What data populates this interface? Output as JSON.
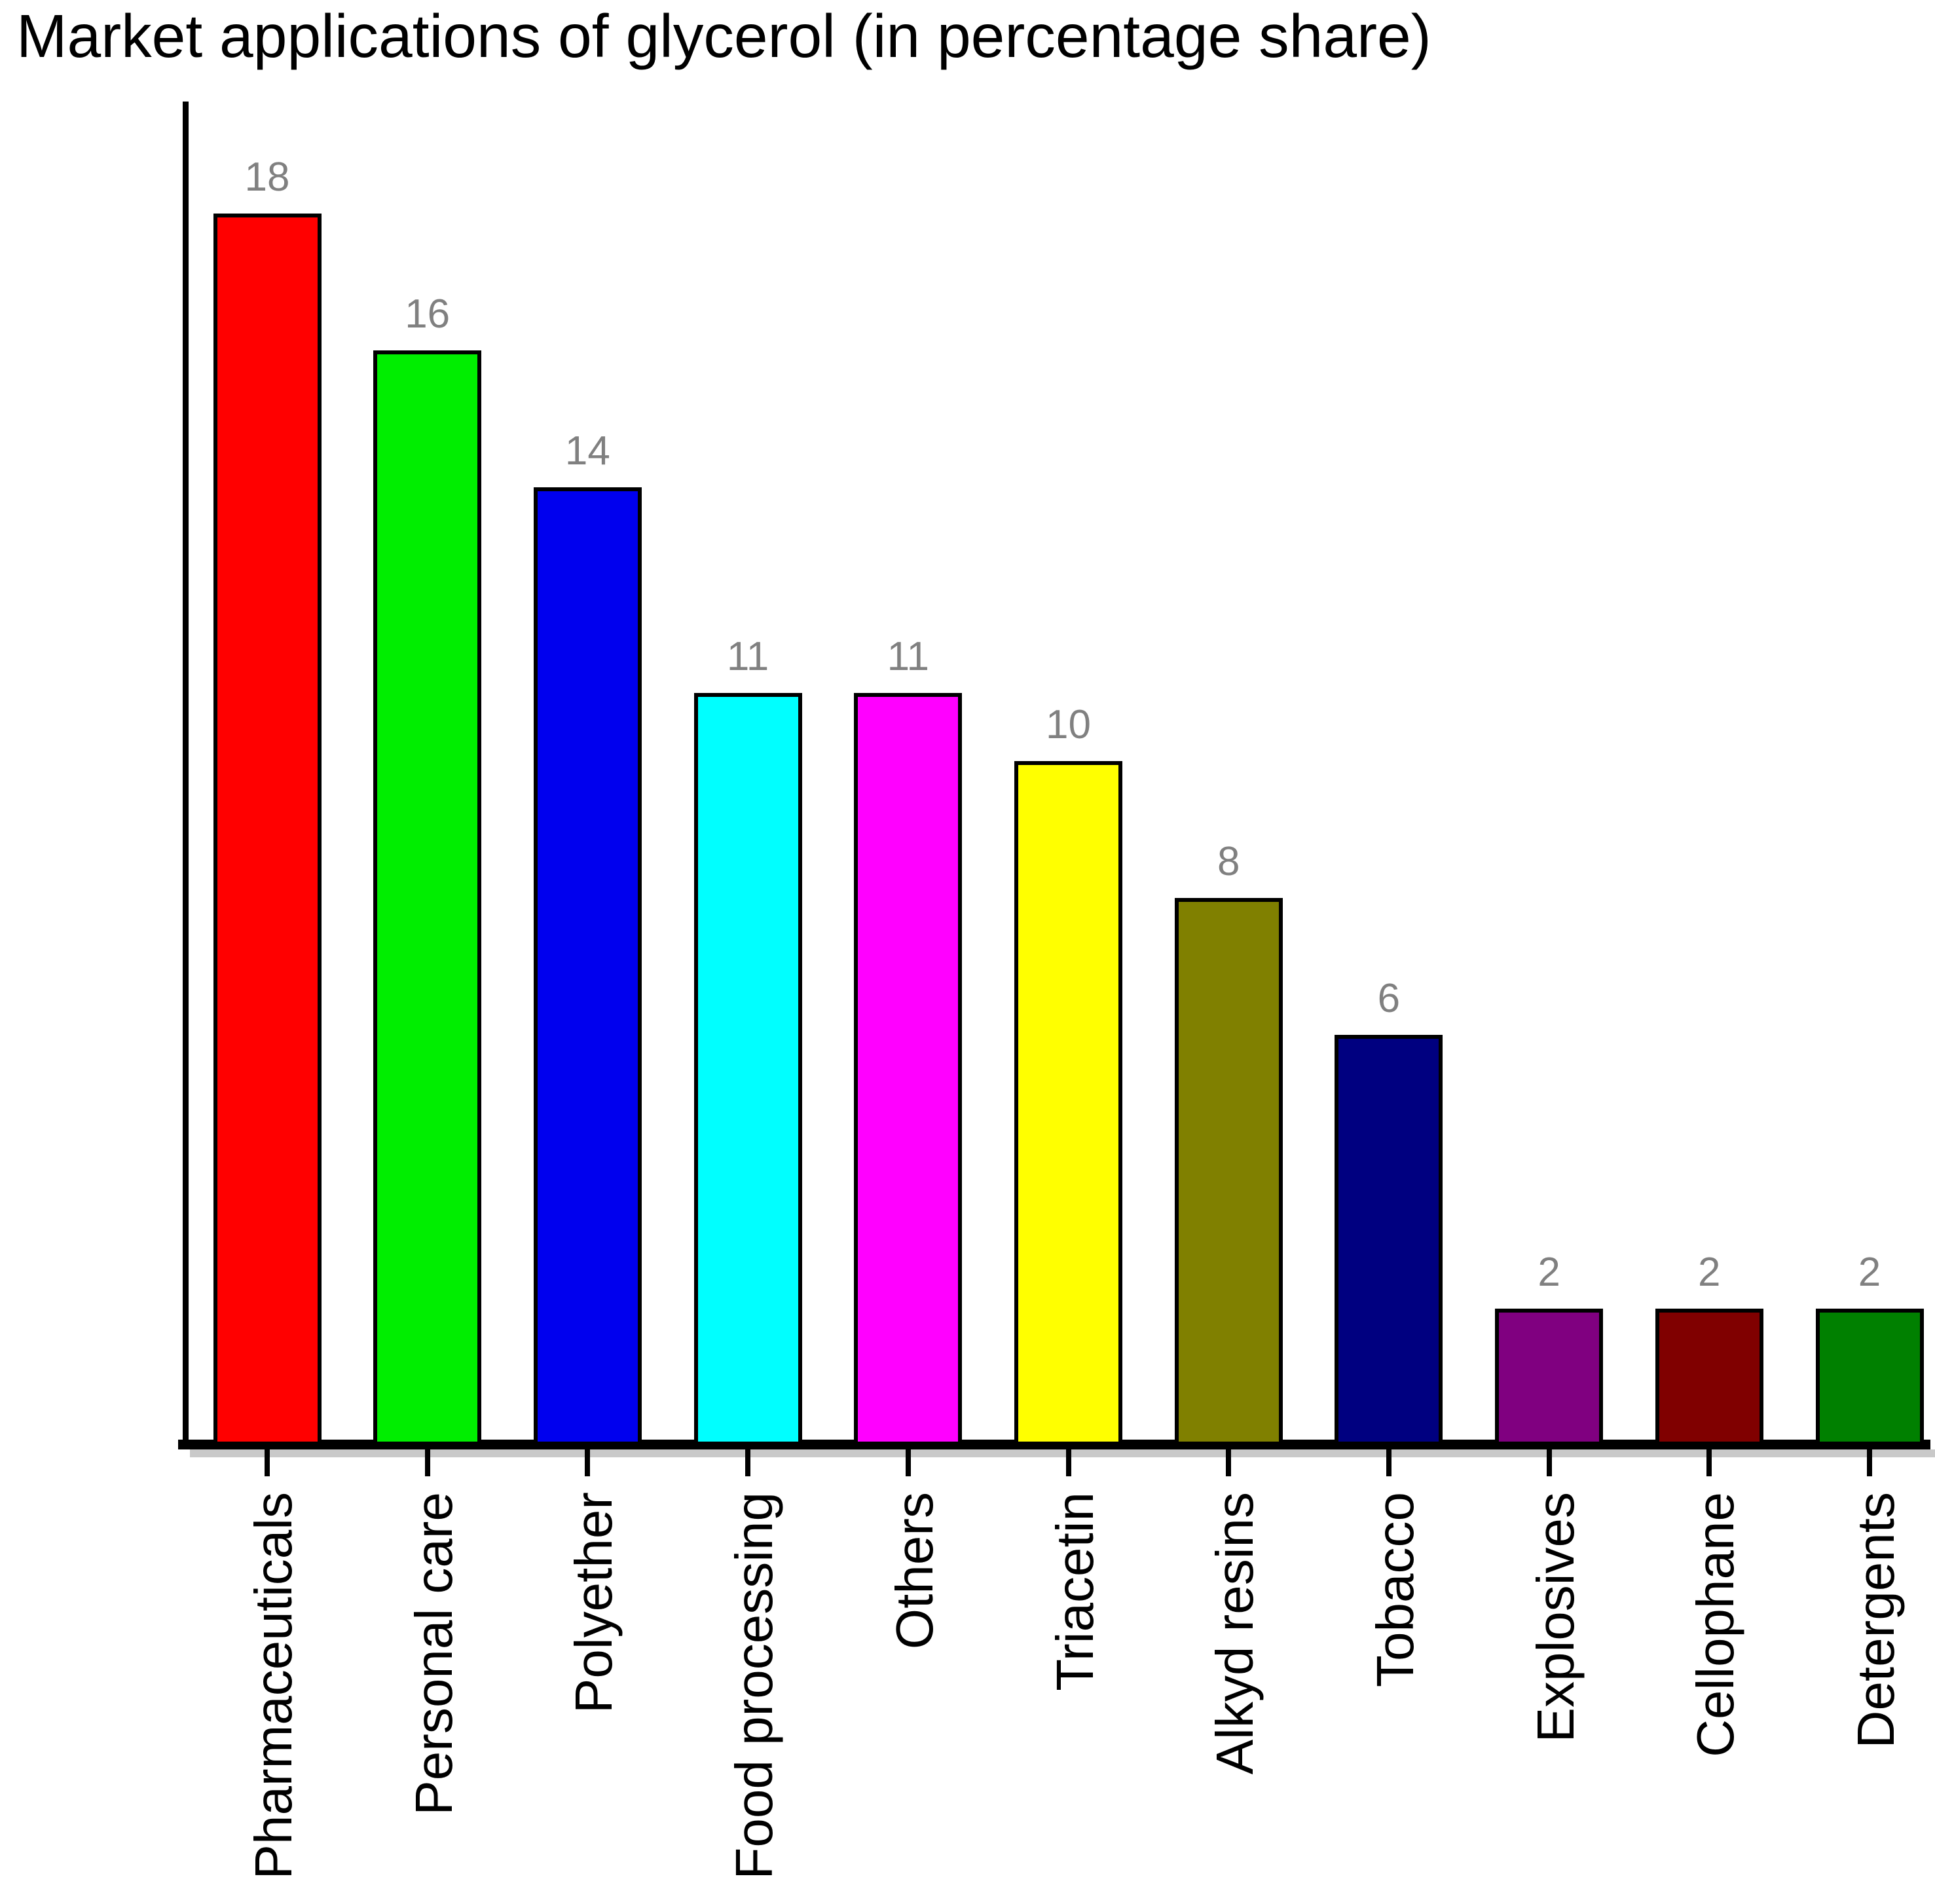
{
  "chart_data": {
    "type": "bar",
    "title": "Market applications of glycerol (in percentage share)",
    "categories": [
      "Pharmaceuticals",
      "Personal care",
      "Polyether",
      "Food processing",
      "Others",
      "Triacetin",
      "Alkyd resins",
      "Tobacco",
      "Explosives",
      "Cellophane",
      "Detergents"
    ],
    "values": [
      18,
      16,
      14,
      11,
      11,
      10,
      8,
      6,
      2,
      2,
      2
    ],
    "bar_colors": [
      "#ff0000",
      "#00ee00",
      "#0000ee",
      "#00ffff",
      "#ff00ff",
      "#ffff00",
      "#808000",
      "#000080",
      "#800080",
      "#800000",
      "#008000"
    ],
    "bar_border_color": "#000000",
    "value_label_color": "#808080",
    "axis_color": "#000000",
    "axis_shadow_color": "#c9c9c9",
    "xlabel": "",
    "ylabel": "",
    "ylim": [
      0,
      20
    ],
    "grid": false,
    "legend": false,
    "value_labels_shown": true,
    "x_tick_label_rotation_deg": 90
  }
}
